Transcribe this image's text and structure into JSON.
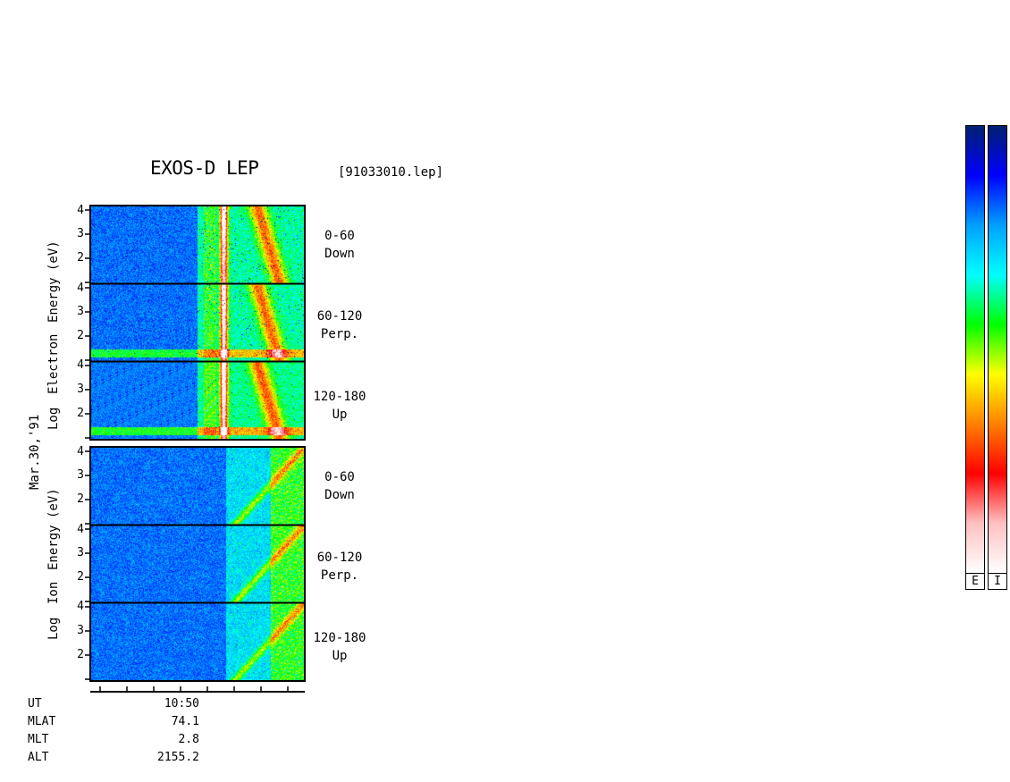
{
  "chart_data": {
    "type": "heatmap",
    "title": "EXOS-D LEP",
    "file": "[91033010.lep]",
    "date_label": "Mar.30,'91",
    "electron_ylabel": [
      "Log",
      "Electron",
      "Energy",
      "(eV)"
    ],
    "ion_ylabel": [
      "Log",
      "Ion",
      "Energy",
      "(eV)"
    ],
    "y_ticks": [
      "4",
      "3",
      "2"
    ],
    "ylim": [
      1,
      4
    ],
    "electron_panels": [
      {
        "range": "0-60",
        "dir": "Down"
      },
      {
        "range": "60-120",
        "dir": "Perp."
      },
      {
        "range": "120-180",
        "dir": "Up"
      }
    ],
    "ion_panels": [
      {
        "range": "0-60",
        "dir": "Down"
      },
      {
        "range": "60-120",
        "dir": "Perp."
      },
      {
        "range": "120-180",
        "dir": "Up"
      }
    ],
    "x_axis": {
      "row_labels": [
        "UT",
        "MLAT",
        "MLT",
        "ALT"
      ],
      "row_values": [
        "10:50",
        "74.1",
        "2.8",
        "2155.2"
      ]
    },
    "colorbar_labels": [
      "E",
      "I"
    ]
  },
  "colors": {
    "background": "#ffffff",
    "colormap": [
      "#002070",
      "#0000ff",
      "#00a0ff",
      "#00ffff",
      "#00ff00",
      "#ffff00",
      "#ff8000",
      "#ff0000",
      "#ffc0c0",
      "#ffffff"
    ]
  }
}
